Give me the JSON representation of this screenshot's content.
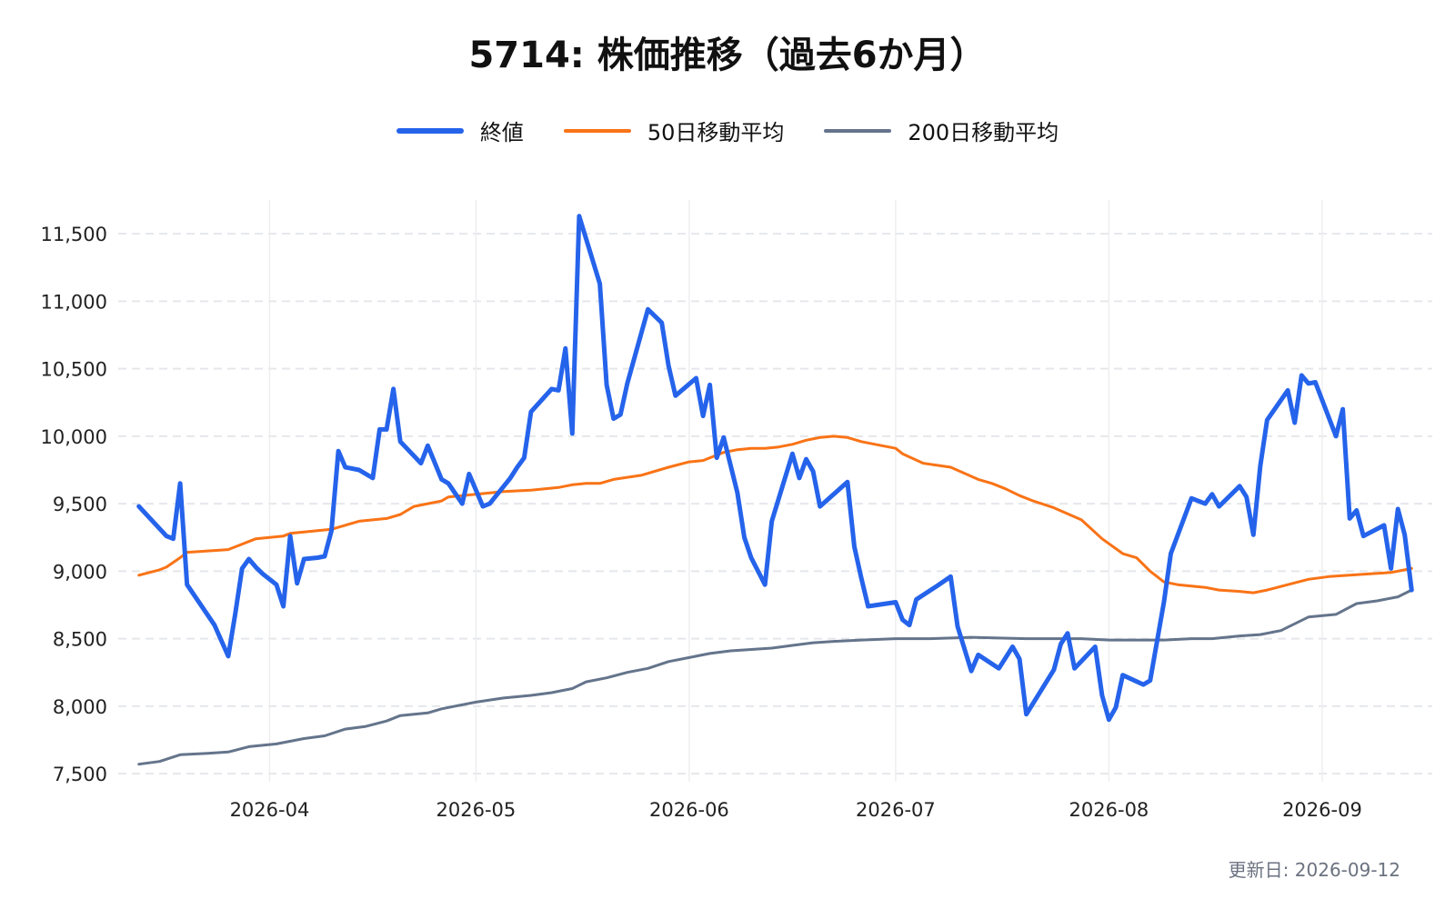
{
  "chart_data": {
    "type": "line",
    "title": "5714: 株価推移（過去6か月）",
    "xlabel": "",
    "ylabel": "",
    "ylim": [
      7440,
      11750
    ],
    "xlim": [
      "2026-03-10",
      "2026-09-17"
    ],
    "yticks": [
      7500,
      8000,
      8500,
      9000,
      9500,
      10000,
      10500,
      11000,
      11500
    ],
    "yticklabels": [
      "7,500",
      "8,000",
      "8,500",
      "9,000",
      "9,500",
      "10,000",
      "10,500",
      "11,000",
      "11,500"
    ],
    "xticks": [
      "2026-04-01",
      "2026-05-01",
      "2026-06-01",
      "2026-07-01",
      "2026-08-01",
      "2026-09-01"
    ],
    "xticklabels": [
      "2026-04",
      "2026-05",
      "2026-06",
      "2026-07",
      "2026-08",
      "2026-09"
    ],
    "grid": true,
    "legend_position": "top-center",
    "series": [
      {
        "name": "終値",
        "color": "#2563eb",
        "points": [
          [
            "2026-03-13",
            9480
          ],
          [
            "2026-03-17",
            9260
          ],
          [
            "2026-03-18",
            9240
          ],
          [
            "2026-03-19",
            9650
          ],
          [
            "2026-03-20",
            8900
          ],
          [
            "2026-03-24",
            8600
          ],
          [
            "2026-03-26",
            8370
          ],
          [
            "2026-03-27",
            8680
          ],
          [
            "2026-03-28",
            9020
          ],
          [
            "2026-03-29",
            9090
          ],
          [
            "2026-03-30",
            9030
          ],
          [
            "2026-03-31",
            8980
          ],
          [
            "2026-04-02",
            8900
          ],
          [
            "2026-04-03",
            8740
          ],
          [
            "2026-04-04",
            9260
          ],
          [
            "2026-04-05",
            8910
          ],
          [
            "2026-04-06",
            9090
          ],
          [
            "2026-04-08",
            9100
          ],
          [
            "2026-04-09",
            9110
          ],
          [
            "2026-04-10",
            9300
          ],
          [
            "2026-04-11",
            9890
          ],
          [
            "2026-04-12",
            9770
          ],
          [
            "2026-04-14",
            9750
          ],
          [
            "2026-04-16",
            9690
          ],
          [
            "2026-04-17",
            10050
          ],
          [
            "2026-04-18",
            10050
          ],
          [
            "2026-04-19",
            10350
          ],
          [
            "2026-04-20",
            9960
          ],
          [
            "2026-04-23",
            9800
          ],
          [
            "2026-04-24",
            9930
          ],
          [
            "2026-04-26",
            9680
          ],
          [
            "2026-04-27",
            9650
          ],
          [
            "2026-04-29",
            9500
          ],
          [
            "2026-04-30",
            9720
          ],
          [
            "2026-05-02",
            9480
          ],
          [
            "2026-05-03",
            9500
          ],
          [
            "2026-05-06",
            9690
          ],
          [
            "2026-05-07",
            9770
          ],
          [
            "2026-05-08",
            9840
          ],
          [
            "2026-05-09",
            10180
          ],
          [
            "2026-05-12",
            10350
          ],
          [
            "2026-05-13",
            10340
          ],
          [
            "2026-05-14",
            10650
          ],
          [
            "2026-05-15",
            10020
          ],
          [
            "2026-05-16",
            11630
          ],
          [
            "2026-05-19",
            11130
          ],
          [
            "2026-05-20",
            10380
          ],
          [
            "2026-05-21",
            10130
          ],
          [
            "2026-05-22",
            10160
          ],
          [
            "2026-05-23",
            10390
          ],
          [
            "2026-05-26",
            10940
          ],
          [
            "2026-05-28",
            10840
          ],
          [
            "2026-05-29",
            10520
          ],
          [
            "2026-05-30",
            10300
          ],
          [
            "2026-06-02",
            10430
          ],
          [
            "2026-06-03",
            10150
          ],
          [
            "2026-06-04",
            10380
          ],
          [
            "2026-06-05",
            9840
          ],
          [
            "2026-06-06",
            9990
          ],
          [
            "2026-06-08",
            9580
          ],
          [
            "2026-06-09",
            9250
          ],
          [
            "2026-06-10",
            9100
          ],
          [
            "2026-06-12",
            8900
          ],
          [
            "2026-06-13",
            9370
          ],
          [
            "2026-06-16",
            9870
          ],
          [
            "2026-06-17",
            9690
          ],
          [
            "2026-06-18",
            9830
          ],
          [
            "2026-06-19",
            9740
          ],
          [
            "2026-06-20",
            9480
          ],
          [
            "2026-06-24",
            9660
          ],
          [
            "2026-06-25",
            9180
          ],
          [
            "2026-06-26",
            8950
          ],
          [
            "2026-06-27",
            8740
          ],
          [
            "2026-07-01",
            8770
          ],
          [
            "2026-07-02",
            8640
          ],
          [
            "2026-07-03",
            8600
          ],
          [
            "2026-07-04",
            8790
          ],
          [
            "2026-07-07",
            8890
          ],
          [
            "2026-07-09",
            8960
          ],
          [
            "2026-07-10",
            8590
          ],
          [
            "2026-07-12",
            8260
          ],
          [
            "2026-07-13",
            8380
          ],
          [
            "2026-07-16",
            8280
          ],
          [
            "2026-07-18",
            8440
          ],
          [
            "2026-07-19",
            8350
          ],
          [
            "2026-07-20",
            7940
          ],
          [
            "2026-07-24",
            8270
          ],
          [
            "2026-07-25",
            8460
          ],
          [
            "2026-07-26",
            8540
          ],
          [
            "2026-07-27",
            8280
          ],
          [
            "2026-07-30",
            8440
          ],
          [
            "2026-07-31",
            8080
          ],
          [
            "2026-08-01",
            7900
          ],
          [
            "2026-08-02",
            7990
          ],
          [
            "2026-08-03",
            8230
          ],
          [
            "2026-08-06",
            8160
          ],
          [
            "2026-08-07",
            8190
          ],
          [
            "2026-08-09",
            8770
          ],
          [
            "2026-08-10",
            9130
          ],
          [
            "2026-08-13",
            9540
          ],
          [
            "2026-08-15",
            9500
          ],
          [
            "2026-08-16",
            9570
          ],
          [
            "2026-08-17",
            9480
          ],
          [
            "2026-08-20",
            9630
          ],
          [
            "2026-08-21",
            9550
          ],
          [
            "2026-08-22",
            9270
          ],
          [
            "2026-08-23",
            9780
          ],
          [
            "2026-08-24",
            10120
          ],
          [
            "2026-08-27",
            10340
          ],
          [
            "2026-08-28",
            10100
          ],
          [
            "2026-08-29",
            10450
          ],
          [
            "2026-08-30",
            10390
          ],
          [
            "2026-08-31",
            10400
          ],
          [
            "2026-09-03",
            10000
          ],
          [
            "2026-09-04",
            10200
          ],
          [
            "2026-09-05",
            9390
          ],
          [
            "2026-09-06",
            9450
          ],
          [
            "2026-09-07",
            9260
          ],
          [
            "2026-09-10",
            9340
          ],
          [
            "2026-09-11",
            9020
          ],
          [
            "2026-09-12",
            9460
          ],
          [
            "2026-09-13",
            9270
          ],
          [
            "2026-09-14",
            8860
          ]
        ]
      },
      {
        "name": "50日移動平均",
        "color": "#f97316",
        "points": [
          [
            "2026-03-13",
            8970
          ],
          [
            "2026-03-16",
            9010
          ],
          [
            "2026-03-17",
            9030
          ],
          [
            "2026-03-19",
            9100
          ],
          [
            "2026-03-20",
            9140
          ],
          [
            "2026-03-26",
            9160
          ],
          [
            "2026-03-27",
            9180
          ],
          [
            "2026-03-30",
            9240
          ],
          [
            "2026-04-01",
            9250
          ],
          [
            "2026-04-03",
            9260
          ],
          [
            "2026-04-04",
            9280
          ],
          [
            "2026-04-06",
            9290
          ],
          [
            "2026-04-10",
            9310
          ],
          [
            "2026-04-14",
            9370
          ],
          [
            "2026-04-18",
            9390
          ],
          [
            "2026-04-20",
            9420
          ],
          [
            "2026-04-22",
            9480
          ],
          [
            "2026-04-24",
            9500
          ],
          [
            "2026-04-26",
            9520
          ],
          [
            "2026-04-27",
            9550
          ],
          [
            "2026-04-29",
            9560
          ],
          [
            "2026-05-01",
            9570
          ],
          [
            "2026-05-05",
            9590
          ],
          [
            "2026-05-09",
            9600
          ],
          [
            "2026-05-13",
            9620
          ],
          [
            "2026-05-15",
            9640
          ],
          [
            "2026-05-17",
            9650
          ],
          [
            "2026-05-19",
            9650
          ],
          [
            "2026-05-21",
            9680
          ],
          [
            "2026-05-25",
            9710
          ],
          [
            "2026-05-29",
            9770
          ],
          [
            "2026-06-01",
            9810
          ],
          [
            "2026-06-03",
            9820
          ],
          [
            "2026-06-06",
            9880
          ],
          [
            "2026-06-08",
            9900
          ],
          [
            "2026-06-10",
            9910
          ],
          [
            "2026-06-12",
            9910
          ],
          [
            "2026-06-14",
            9920
          ],
          [
            "2026-06-16",
            9940
          ],
          [
            "2026-06-18",
            9970
          ],
          [
            "2026-06-20",
            9990
          ],
          [
            "2026-06-22",
            10000
          ],
          [
            "2026-06-24",
            9990
          ],
          [
            "2026-06-26",
            9960
          ],
          [
            "2026-06-28",
            9940
          ],
          [
            "2026-07-01",
            9910
          ],
          [
            "2026-07-02",
            9870
          ],
          [
            "2026-07-05",
            9800
          ],
          [
            "2026-07-09",
            9770
          ],
          [
            "2026-07-13",
            9680
          ],
          [
            "2026-07-15",
            9650
          ],
          [
            "2026-07-17",
            9610
          ],
          [
            "2026-07-19",
            9560
          ],
          [
            "2026-07-21",
            9520
          ],
          [
            "2026-07-24",
            9470
          ],
          [
            "2026-07-28",
            9380
          ],
          [
            "2026-07-31",
            9240
          ],
          [
            "2026-08-03",
            9130
          ],
          [
            "2026-08-05",
            9100
          ],
          [
            "2026-08-07",
            9000
          ],
          [
            "2026-08-09",
            8920
          ],
          [
            "2026-08-11",
            8900
          ],
          [
            "2026-08-15",
            8880
          ],
          [
            "2026-08-17",
            8860
          ],
          [
            "2026-08-20",
            8850
          ],
          [
            "2026-08-22",
            8840
          ],
          [
            "2026-08-24",
            8860
          ],
          [
            "2026-08-27",
            8900
          ],
          [
            "2026-08-30",
            8940
          ],
          [
            "2026-09-02",
            8960
          ],
          [
            "2026-09-05",
            8970
          ],
          [
            "2026-09-08",
            8980
          ],
          [
            "2026-09-11",
            8990
          ],
          [
            "2026-09-14",
            9020
          ]
        ]
      },
      {
        "name": "200日移動平均",
        "color": "#64748b",
        "points": [
          [
            "2026-03-13",
            7570
          ],
          [
            "2026-03-16",
            7590
          ],
          [
            "2026-03-19",
            7640
          ],
          [
            "2026-03-23",
            7650
          ],
          [
            "2026-03-26",
            7660
          ],
          [
            "2026-03-29",
            7700
          ],
          [
            "2026-04-02",
            7720
          ],
          [
            "2026-04-06",
            7760
          ],
          [
            "2026-04-09",
            7780
          ],
          [
            "2026-04-12",
            7830
          ],
          [
            "2026-04-15",
            7850
          ],
          [
            "2026-04-18",
            7890
          ],
          [
            "2026-04-20",
            7930
          ],
          [
            "2026-04-24",
            7950
          ],
          [
            "2026-04-26",
            7980
          ],
          [
            "2026-04-28",
            8000
          ],
          [
            "2026-05-01",
            8030
          ],
          [
            "2026-05-05",
            8060
          ],
          [
            "2026-05-09",
            8080
          ],
          [
            "2026-05-12",
            8100
          ],
          [
            "2026-05-15",
            8130
          ],
          [
            "2026-05-17",
            8180
          ],
          [
            "2026-05-20",
            8210
          ],
          [
            "2026-05-23",
            8250
          ],
          [
            "2026-05-26",
            8280
          ],
          [
            "2026-05-29",
            8330
          ],
          [
            "2026-06-01",
            8360
          ],
          [
            "2026-06-04",
            8390
          ],
          [
            "2026-06-07",
            8410
          ],
          [
            "2026-06-10",
            8420
          ],
          [
            "2026-06-13",
            8430
          ],
          [
            "2026-06-16",
            8450
          ],
          [
            "2026-06-19",
            8470
          ],
          [
            "2026-06-22",
            8480
          ],
          [
            "2026-06-26",
            8490
          ],
          [
            "2026-07-01",
            8500
          ],
          [
            "2026-07-06",
            8500
          ],
          [
            "2026-07-12",
            8510
          ],
          [
            "2026-07-20",
            8500
          ],
          [
            "2026-07-28",
            8500
          ],
          [
            "2026-08-01",
            8490
          ],
          [
            "2026-08-06",
            8490
          ],
          [
            "2026-08-09",
            8490
          ],
          [
            "2026-08-13",
            8500
          ],
          [
            "2026-08-16",
            8500
          ],
          [
            "2026-08-18",
            8510
          ],
          [
            "2026-08-20",
            8520
          ],
          [
            "2026-08-23",
            8530
          ],
          [
            "2026-08-26",
            8560
          ],
          [
            "2026-08-30",
            8660
          ],
          [
            "2026-09-03",
            8680
          ],
          [
            "2026-09-06",
            8760
          ],
          [
            "2026-09-09",
            8780
          ],
          [
            "2026-09-12",
            8810
          ],
          [
            "2026-09-14",
            8860
          ]
        ]
      }
    ]
  },
  "footer": {
    "updated": "更新日: 2026-09-12"
  },
  "colors": {
    "grid": "#e5e7eb",
    "background": "#ffffff"
  }
}
